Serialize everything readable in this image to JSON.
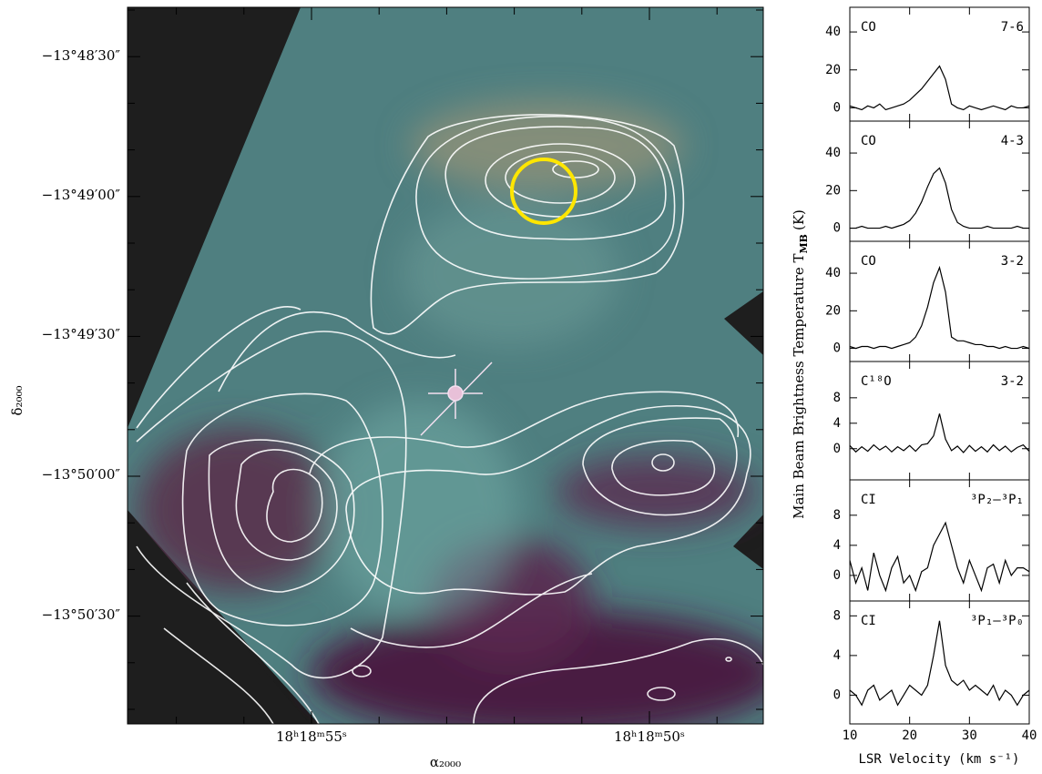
{
  "image": {
    "xlabel": "α₂₀₀₀",
    "ylabel": "δ₂₀₀₀",
    "yticks": [
      "−13°48′30″",
      "−13°49′00″",
      "−13°49′30″",
      "−13°50′00″",
      "−13°50′30″"
    ],
    "xticks": [
      "18ʰ18ᵐ55ˢ",
      "18ʰ18ᵐ50ˢ"
    ]
  },
  "spectra": {
    "ylabel": {
      "text": "Main Beam Brightness Temperature T",
      "sub": "MB",
      "unit": "(K)"
    },
    "xlabel": "LSR Velocity (km s⁻¹)"
  },
  "chart_data": [
    {
      "type": "line",
      "molecule": "CO",
      "transition": "7-6",
      "color": "#000000",
      "x": [
        10,
        11,
        12,
        13,
        14,
        15,
        16,
        17,
        18,
        19,
        20,
        21,
        22,
        23,
        24,
        25,
        26,
        27,
        28,
        29,
        30,
        31,
        32,
        33,
        34,
        35,
        36,
        37,
        38,
        39,
        40
      ],
      "values": [
        1,
        0,
        -1,
        1,
        0,
        2,
        -1,
        0,
        1,
        2,
        4,
        7,
        10,
        14,
        18,
        22,
        15,
        2,
        0,
        -1,
        1,
        0,
        -1,
        0,
        1,
        0,
        -1,
        1,
        0,
        0,
        1
      ],
      "xlim": [
        10,
        40
      ],
      "xticks": [
        10,
        20,
        30,
        40
      ],
      "ylim": [
        -7,
        53
      ],
      "yticks": [
        0,
        20,
        40
      ]
    },
    {
      "type": "line",
      "molecule": "CO",
      "transition": "4-3",
      "color": "#000000",
      "x": [
        10,
        11,
        12,
        13,
        14,
        15,
        16,
        17,
        18,
        19,
        20,
        21,
        22,
        23,
        24,
        25,
        26,
        27,
        28,
        29,
        30,
        31,
        32,
        33,
        34,
        35,
        36,
        37,
        38,
        39,
        40
      ],
      "values": [
        0,
        0,
        1,
        0,
        0,
        0,
        1,
        0,
        1,
        2,
        4,
        8,
        14,
        22,
        29,
        32,
        24,
        10,
        3,
        1,
        0,
        0,
        0,
        1,
        0,
        0,
        0,
        0,
        1,
        0,
        0
      ],
      "xlim": [
        10,
        40
      ],
      "xticks": [
        10,
        20,
        30,
        40
      ],
      "ylim": [
        -7,
        57
      ],
      "yticks": [
        0,
        20,
        40
      ]
    },
    {
      "type": "line",
      "molecule": "CO",
      "transition": "3-2",
      "color": "#000000",
      "x": [
        10,
        11,
        12,
        13,
        14,
        15,
        16,
        17,
        18,
        19,
        20,
        21,
        22,
        23,
        24,
        25,
        26,
        27,
        28,
        29,
        30,
        31,
        32,
        33,
        34,
        35,
        36,
        37,
        38,
        39,
        40
      ],
      "values": [
        1,
        0,
        1,
        1,
        0,
        1,
        1,
        0,
        1,
        2,
        3,
        6,
        12,
        22,
        35,
        43,
        30,
        6,
        4,
        4,
        3,
        2,
        2,
        1,
        1,
        0,
        1,
        0,
        0,
        1,
        0
      ],
      "xlim": [
        10,
        40
      ],
      "xticks": [
        10,
        20,
        30,
        40
      ],
      "ylim": [
        -7,
        57
      ],
      "yticks": [
        0,
        20,
        40
      ]
    },
    {
      "type": "line",
      "molecule": "C¹⁸O",
      "transition": "3-2",
      "color": "#000000",
      "x": [
        10,
        11,
        12,
        13,
        14,
        15,
        16,
        17,
        18,
        19,
        20,
        21,
        22,
        23,
        24,
        25,
        26,
        27,
        28,
        29,
        30,
        31,
        32,
        33,
        34,
        35,
        36,
        37,
        38,
        39,
        40
      ],
      "values": [
        0.5,
        -0.5,
        0.3,
        -0.4,
        0.6,
        -0.2,
        0.4,
        -0.5,
        0.3,
        -0.3,
        0.5,
        -0.4,
        0.6,
        0.8,
        2,
        5.5,
        1.5,
        -0.3,
        0.4,
        -0.6,
        0.5,
        -0.4,
        0.3,
        -0.5,
        0.6,
        -0.3,
        0.4,
        -0.5,
        0.2,
        0.6,
        -0.4
      ],
      "xlim": [
        10,
        40
      ],
      "xticks": [
        10,
        20,
        30,
        40
      ],
      "ylim": [
        -4.9,
        13.7
      ],
      "yticks": [
        0,
        4,
        8
      ]
    },
    {
      "type": "line",
      "molecule": "CI",
      "transition": "³P₂–³P₁",
      "color": "#000000",
      "x": [
        10,
        11,
        12,
        13,
        14,
        15,
        16,
        17,
        18,
        19,
        20,
        21,
        22,
        23,
        24,
        25,
        26,
        27,
        28,
        29,
        30,
        31,
        32,
        33,
        34,
        35,
        36,
        37,
        38,
        39,
        40
      ],
      "values": [
        2,
        -1,
        1,
        -2,
        3,
        0,
        -2,
        1,
        2.5,
        -1,
        0,
        -2,
        0.5,
        1,
        4,
        5.5,
        7,
        4,
        1,
        -1,
        2,
        0,
        -2,
        1,
        1.5,
        -1,
        2,
        0,
        1,
        1,
        0.5
      ],
      "xlim": [
        10,
        40
      ],
      "xticks": [
        10,
        20,
        30,
        40
      ],
      "ylim": [
        -3.4,
        12.7
      ],
      "yticks": [
        0,
        4,
        8
      ]
    },
    {
      "type": "line",
      "molecule": "CI",
      "transition": "³P₁–³P₀",
      "color": "#000000",
      "x": [
        10,
        11,
        12,
        13,
        14,
        15,
        16,
        17,
        18,
        19,
        20,
        21,
        22,
        23,
        24,
        25,
        26,
        27,
        28,
        29,
        30,
        31,
        32,
        33,
        34,
        35,
        36,
        37,
        38,
        39,
        40
      ],
      "values": [
        0.5,
        0,
        -1,
        0.5,
        1,
        -0.5,
        0,
        0.5,
        -1,
        0,
        1,
        0.5,
        0,
        1,
        4,
        7.5,
        3,
        1.5,
        1,
        1.5,
        0.5,
        1,
        0.5,
        0,
        1,
        -0.5,
        0.5,
        0,
        -1,
        0,
        0.5
      ],
      "xlim": [
        10,
        40
      ],
      "xticks": [
        10,
        20,
        30,
        40
      ],
      "ylim": [
        -2.9,
        9.5
      ],
      "yticks": [
        0,
        4,
        8
      ]
    }
  ]
}
